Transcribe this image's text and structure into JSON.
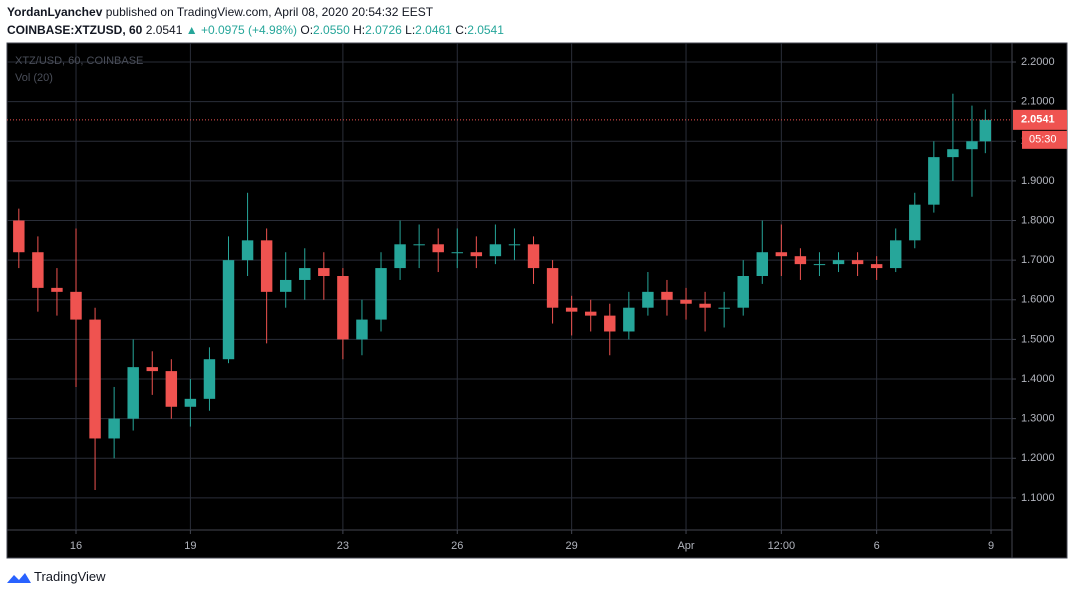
{
  "header": {
    "author": "YordanLyanchev",
    "published": "published on TradingView.com, April 08, 2020 20:54:32 EEST",
    "symbol": "COINBASE:XTZUSD, 60",
    "last": "2.0541",
    "change": "▲ +0.0975 (+4.98%)",
    "o_label": "O:",
    "o": "2.0550",
    "h_label": "H:",
    "h": "2.0726",
    "l_label": "L:",
    "l": "2.0461",
    "c_label": "C:",
    "c": "2.0541"
  },
  "chart_data": {
    "type": "candlestick",
    "legend_title": "XTZ/USD, 60, COINBASE",
    "volume_label": "Vol (20)",
    "up_color": "#26a69a",
    "down_color": "#ef5350",
    "grid": true,
    "x": [
      -1.5,
      -1,
      -0.5,
      0,
      0.5,
      1,
      1.5,
      2,
      2.5,
      3,
      3.5,
      4,
      4.5,
      5,
      5.5,
      6,
      6.5,
      7,
      7.5,
      8,
      8.5,
      9,
      9.5,
      10,
      10.5,
      11,
      11.5,
      12,
      12.5,
      13,
      13.5,
      14,
      14.5,
      15,
      15.5,
      16,
      16.5,
      17,
      17.5,
      18,
      18.5,
      19,
      19.5,
      20,
      20.5,
      21,
      21.5,
      22,
      22.5,
      23,
      23.5,
      23.85
    ],
    "open": [
      1.8,
      1.72,
      1.63,
      1.62,
      1.55,
      1.25,
      1.3,
      1.43,
      1.42,
      1.33,
      1.35,
      1.45,
      1.7,
      1.75,
      1.62,
      1.65,
      1.68,
      1.66,
      1.5,
      1.55,
      1.68,
      1.74,
      1.74,
      1.72,
      1.72,
      1.71,
      1.74,
      1.74,
      1.68,
      1.58,
      1.57,
      1.56,
      1.52,
      1.58,
      1.62,
      1.6,
      1.59,
      1.58,
      1.58,
      1.66,
      1.72,
      1.71,
      1.69,
      1.69,
      1.7,
      1.69,
      1.68,
      1.75,
      1.84,
      1.96,
      1.98,
      2.0
    ],
    "high": [
      1.83,
      1.76,
      1.68,
      1.78,
      1.58,
      1.38,
      1.5,
      1.47,
      1.45,
      1.4,
      1.48,
      1.76,
      1.87,
      1.78,
      1.72,
      1.73,
      1.72,
      1.68,
      1.6,
      1.72,
      1.8,
      1.79,
      1.78,
      1.78,
      1.76,
      1.79,
      1.78,
      1.76,
      1.7,
      1.61,
      1.6,
      1.59,
      1.62,
      1.67,
      1.65,
      1.63,
      1.62,
      1.62,
      1.7,
      1.8,
      1.79,
      1.73,
      1.72,
      1.72,
      1.72,
      1.71,
      1.78,
      1.87,
      2.0,
      2.12,
      2.09,
      2.08
    ],
    "low": [
      1.68,
      1.57,
      1.56,
      1.38,
      1.12,
      1.2,
      1.27,
      1.36,
      1.3,
      1.28,
      1.32,
      1.44,
      1.66,
      1.49,
      1.58,
      1.6,
      1.6,
      1.45,
      1.46,
      1.52,
      1.65,
      1.68,
      1.67,
      1.68,
      1.68,
      1.69,
      1.7,
      1.64,
      1.54,
      1.51,
      1.52,
      1.46,
      1.5,
      1.56,
      1.56,
      1.55,
      1.52,
      1.53,
      1.56,
      1.64,
      1.66,
      1.65,
      1.66,
      1.67,
      1.66,
      1.65,
      1.67,
      1.73,
      1.82,
      1.9,
      1.86,
      1.97
    ],
    "close": [
      1.72,
      1.63,
      1.62,
      1.55,
      1.25,
      1.3,
      1.43,
      1.42,
      1.33,
      1.35,
      1.45,
      1.7,
      1.75,
      1.62,
      1.65,
      1.68,
      1.66,
      1.5,
      1.55,
      1.68,
      1.74,
      1.74,
      1.72,
      1.72,
      1.71,
      1.74,
      1.74,
      1.68,
      1.58,
      1.57,
      1.56,
      1.52,
      1.58,
      1.62,
      1.6,
      1.59,
      1.58,
      1.58,
      1.66,
      1.72,
      1.71,
      1.69,
      1.69,
      1.7,
      1.69,
      1.68,
      1.75,
      1.84,
      1.96,
      1.98,
      2.0,
      2.0541
    ],
    "xlim": [
      -1.81,
      24.55
    ],
    "xticks": [
      {
        "value": 0,
        "label": "16"
      },
      {
        "value": 3,
        "label": "19"
      },
      {
        "value": 7,
        "label": "23"
      },
      {
        "value": 10,
        "label": "26"
      },
      {
        "value": 13,
        "label": "29"
      },
      {
        "value": 16,
        "label": "Apr"
      },
      {
        "value": 18.5,
        "label": "12:00"
      },
      {
        "value": 21,
        "label": "6"
      },
      {
        "value": 24,
        "label": "9"
      }
    ],
    "ylim": [
      1.019,
      2.248
    ],
    "yticks": [
      {
        "value": 1.1,
        "label": "1.1000"
      },
      {
        "value": 1.2,
        "label": "1.2000"
      },
      {
        "value": 1.3,
        "label": "1.3000"
      },
      {
        "value": 1.4,
        "label": "1.4000"
      },
      {
        "value": 1.5,
        "label": "1.5000"
      },
      {
        "value": 1.6,
        "label": "1.6000"
      },
      {
        "value": 1.7,
        "label": "1.7000"
      },
      {
        "value": 1.8,
        "label": "1.8000"
      },
      {
        "value": 1.9,
        "label": "1.9000"
      },
      {
        "value": 2.0,
        "label": "2.0000"
      },
      {
        "value": 2.1,
        "label": "2.1000"
      },
      {
        "value": 2.2,
        "label": "2.2000"
      }
    ],
    "last_price": 2.0541,
    "last_price_label": "2.0541",
    "timer": "05:30",
    "price_line_color": "#ef5350"
  },
  "footer": {
    "brand": "TradingView"
  }
}
